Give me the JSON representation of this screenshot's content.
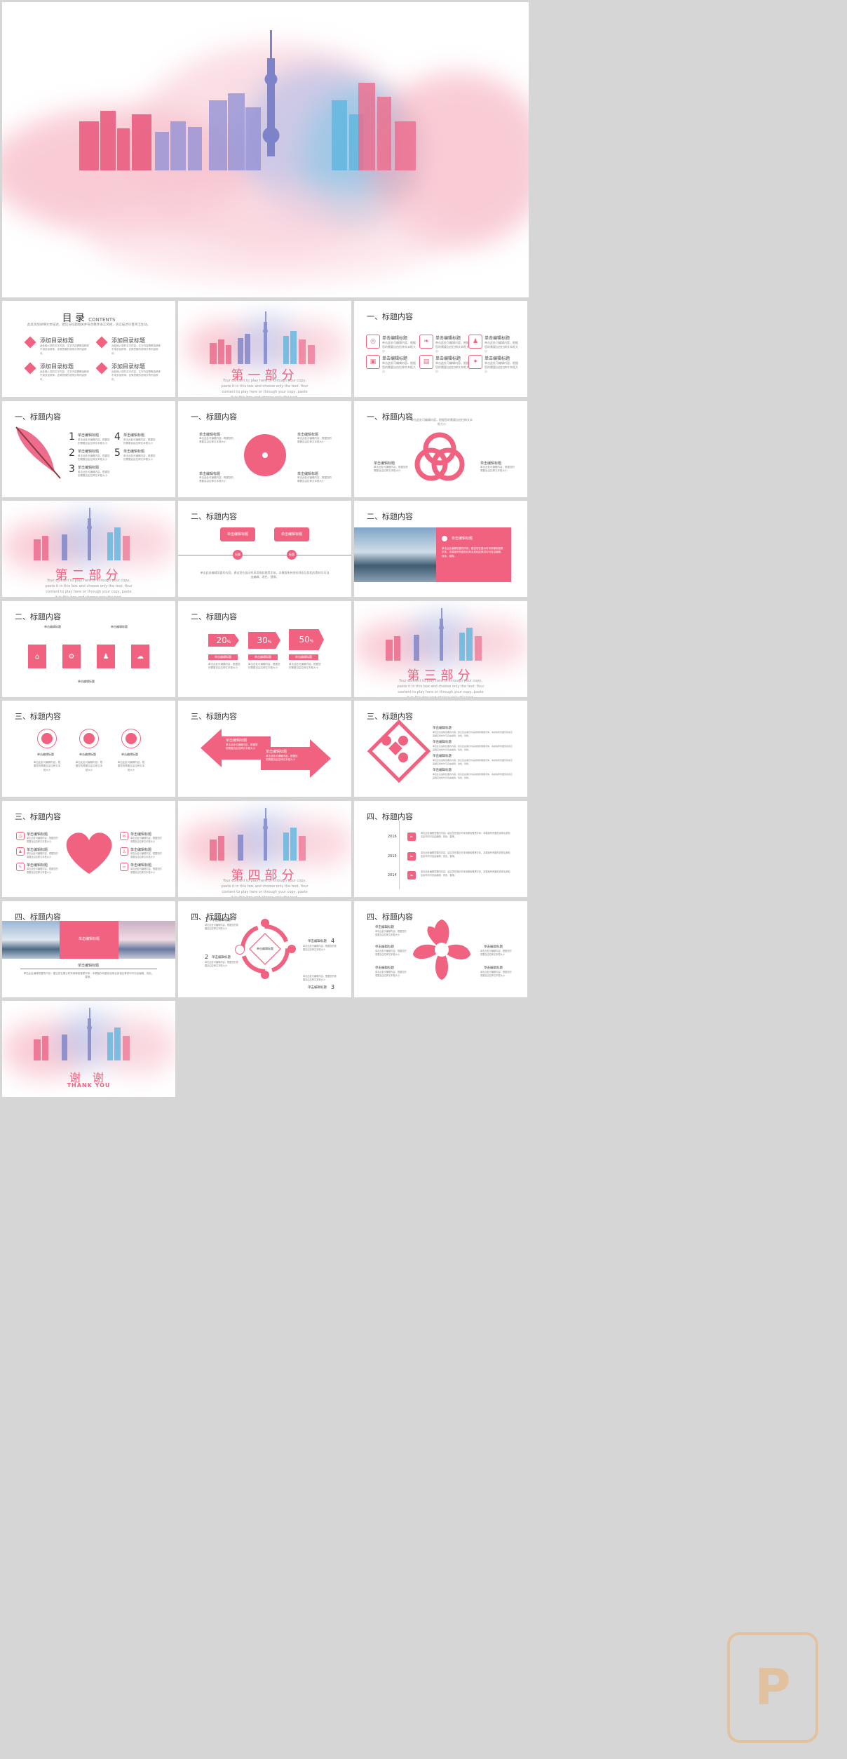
{
  "colors": {
    "accent": "#f0627f",
    "bg": "#d6d6d6",
    "watermark": "#e9b47a"
  },
  "toc": {
    "title": "目 录",
    "title_en": "CONTENTS",
    "subtitle": "此处添加详细文本描述，建议与标题相关并符合整体语言风格，语言描述尽量简洁生动。",
    "items": [
      {
        "label": "添加目录标题",
        "desc": "此处输入您的文字内容，文字内容需概括精炼不用多加修饰，言简意赅的说明分项内容即可。"
      },
      {
        "label": "添加目录标题",
        "desc": "此处输入您的文字内容，文字内容需概括精炼不用多加修饰，言简意赅的说明分项内容即可。"
      },
      {
        "label": "添加目录标题",
        "desc": "此处输入您的文字内容，文字内容需概括精炼不用多加修饰，言简意赅的说明分项内容即可。"
      },
      {
        "label": "添加目录标题",
        "desc": "此处输入您的文字内容，文字内容需概括精炼不用多加修饰，言简意赅的说明分项内容即可。"
      }
    ]
  },
  "parts": {
    "p1": "第一部分",
    "p2": "第二部分",
    "p3": "第三部分",
    "p4": "第四部分",
    "end": "谢 谢",
    "end_en": "THANK YOU",
    "sub": "Your content to play here or through your copy, paste it in this box and choose only the text. Your content to play here or through your copy, paste it in this box and choose only the text."
  },
  "headers": {
    "h1": "一、标题内容",
    "h2": "二、标题内容",
    "h3": "三、标题内容",
    "h4": "四、标题内容"
  },
  "common": {
    "title": "单击编辑标题",
    "desc": "单击此处可编辑内容，根据您的需要自由拉伸文本框大小",
    "desc_long": "单击此处编辑您要的内容，建议您在展示时采用微软雅黑字体，本模版所有图形线条及其相应素材均可自由编辑、改色、替换。",
    "label": "标题"
  },
  "nums": [
    "1",
    "2",
    "3",
    "4",
    "5"
  ],
  "percents": [
    "20",
    "30",
    "50"
  ],
  "percent_unit": "%",
  "years": [
    "2016",
    "2015",
    "2014"
  ]
}
